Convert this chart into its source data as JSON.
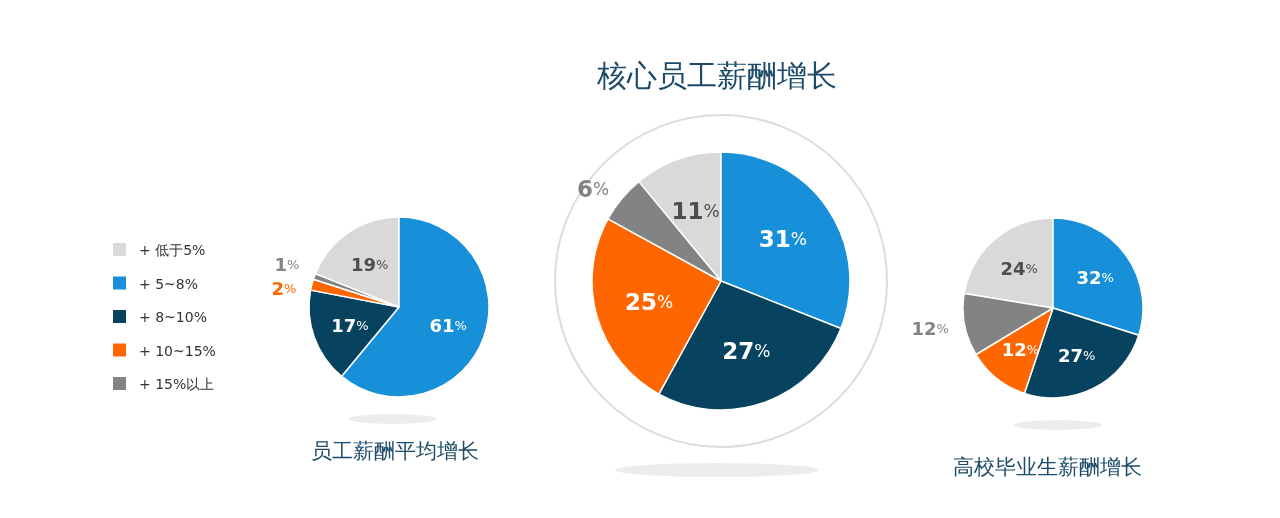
{
  "chart_data": [
    {
      "type": "pie",
      "title": "员工薪酬平均增长",
      "categories": [
        "+ 低于5%",
        "+ 5~8%",
        "+ 8~10%",
        "+ 10~15%",
        "+ 15%以上"
      ],
      "values": [
        19,
        61,
        17,
        2,
        1
      ],
      "colors": [
        "#d9d9d9",
        "#1890d9",
        "#07435f",
        "#ff6600",
        "#838383"
      ],
      "value_labels": [
        "19%",
        "61%",
        "17%",
        "2%",
        "1%"
      ],
      "legend": "left"
    },
    {
      "type": "pie",
      "title": "核心员工薪酬增长",
      "values": [
        11,
        31,
        27,
        25,
        6
      ],
      "colors": [
        "#d9d9d9",
        "#1890d9",
        "#07435f",
        "#ff6600",
        "#838383"
      ],
      "value_labels": [
        "11%",
        "31%",
        "27%",
        "25%",
        "6%"
      ]
    },
    {
      "type": "pie",
      "title": "高校毕业生薪酬增长",
      "values": [
        24,
        32,
        27,
        12,
        12
      ],
      "colors": [
        "#d9d9d9",
        "#1890d9",
        "#07435f",
        "#ff6600",
        "#838383"
      ],
      "value_labels": [
        "24%",
        "32%",
        "27%",
        "12%",
        "12%"
      ]
    }
  ]
}
